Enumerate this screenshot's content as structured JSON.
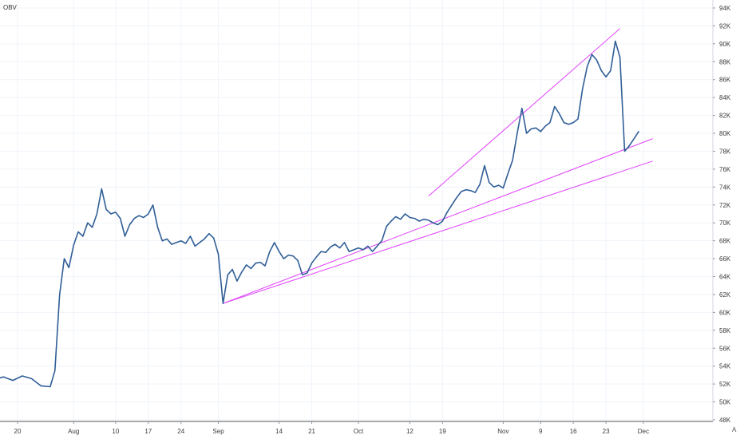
{
  "indicator": {
    "label": "OBV"
  },
  "corner": {
    "label": "A"
  },
  "colors": {
    "series": "#2f5e96",
    "trendline": "#e040fb",
    "grid": "#f0f3fa",
    "axis_text": "#3b3b3b",
    "axis_line": "#9598a1"
  },
  "chart_data": {
    "type": "line",
    "title": "",
    "xlabel": "",
    "ylabel": "",
    "ylim": [
      48000,
      94000
    ],
    "y_ticks": [
      {
        "value": 94000,
        "label": "94K"
      },
      {
        "value": 92000,
        "label": "92K"
      },
      {
        "value": 90000,
        "label": "90K"
      },
      {
        "value": 88000,
        "label": "88K"
      },
      {
        "value": 86000,
        "label": "86K"
      },
      {
        "value": 84000,
        "label": "84K"
      },
      {
        "value": 82000,
        "label": "82K"
      },
      {
        "value": 80000,
        "label": "80K"
      },
      {
        "value": 78000,
        "label": "78K"
      },
      {
        "value": 76000,
        "label": "76K"
      },
      {
        "value": 74000,
        "label": "74K"
      },
      {
        "value": 72000,
        "label": "72K"
      },
      {
        "value": 70000,
        "label": "70K"
      },
      {
        "value": 68000,
        "label": "68K"
      },
      {
        "value": 66000,
        "label": "66K"
      },
      {
        "value": 64000,
        "label": "64K"
      },
      {
        "value": 62000,
        "label": "62K"
      },
      {
        "value": 60000,
        "label": "60K"
      },
      {
        "value": 58000,
        "label": "58K"
      },
      {
        "value": 56000,
        "label": "56K"
      },
      {
        "value": 54000,
        "label": "54K"
      },
      {
        "value": 52000,
        "label": "52K"
      },
      {
        "value": 50000,
        "label": "50K"
      },
      {
        "value": 48000,
        "label": "48K"
      }
    ],
    "x_ticks": [
      {
        "date": "07-20",
        "label": "20"
      },
      {
        "date": "08-01",
        "label": "Aug"
      },
      {
        "date": "08-10",
        "label": "10"
      },
      {
        "date": "08-17",
        "label": "17"
      },
      {
        "date": "08-24",
        "label": "24"
      },
      {
        "date": "09-01",
        "label": "Sep"
      },
      {
        "date": "09-14",
        "label": "14"
      },
      {
        "date": "09-21",
        "label": "21"
      },
      {
        "date": "10-01",
        "label": "Oct"
      },
      {
        "date": "10-12",
        "label": "12"
      },
      {
        "date": "10-19",
        "label": "19"
      },
      {
        "date": "11-01",
        "label": "Nov"
      },
      {
        "date": "11-09",
        "label": "9"
      },
      {
        "date": "11-16",
        "label": "16"
      },
      {
        "date": "11-23",
        "label": "23"
      },
      {
        "date": "12-01",
        "label": "Dec"
      }
    ],
    "series": [
      {
        "points": [
          [
            "07-15",
            52500
          ],
          [
            "07-17",
            52800
          ],
          [
            "07-19",
            52400
          ],
          [
            "07-21",
            52900
          ],
          [
            "07-23",
            52600
          ],
          [
            "07-25",
            51800
          ],
          [
            "07-27",
            51700
          ],
          [
            "07-28",
            53500
          ],
          [
            "07-29",
            62000
          ],
          [
            "07-30",
            66000
          ],
          [
            "07-31",
            65000
          ],
          [
            "08-01",
            67500
          ],
          [
            "08-02",
            69000
          ],
          [
            "08-03",
            68500
          ],
          [
            "08-04",
            70000
          ],
          [
            "08-05",
            69500
          ],
          [
            "08-06",
            71000
          ],
          [
            "08-07",
            73800
          ],
          [
            "08-08",
            71500
          ],
          [
            "08-09",
            71000
          ],
          [
            "08-10",
            71200
          ],
          [
            "08-11",
            70500
          ],
          [
            "08-12",
            68500
          ],
          [
            "08-13",
            69800
          ],
          [
            "08-14",
            70500
          ],
          [
            "08-15",
            70800
          ],
          [
            "08-16",
            70600
          ],
          [
            "08-17",
            71000
          ],
          [
            "08-18",
            72000
          ],
          [
            "08-19",
            69500
          ],
          [
            "08-20",
            68000
          ],
          [
            "08-21",
            68200
          ],
          [
            "08-22",
            67600
          ],
          [
            "08-23",
            67800
          ],
          [
            "08-24",
            68000
          ],
          [
            "08-25",
            67700
          ],
          [
            "08-26",
            68500
          ],
          [
            "08-27",
            67400
          ],
          [
            "08-28",
            67800
          ],
          [
            "08-29",
            68200
          ],
          [
            "08-30",
            68800
          ],
          [
            "08-31",
            68300
          ],
          [
            "09-01",
            66500
          ],
          [
            "09-02",
            61000
          ],
          [
            "09-03",
            64200
          ],
          [
            "09-04",
            64800
          ],
          [
            "09-05",
            63500
          ],
          [
            "09-06",
            64500
          ],
          [
            "09-07",
            65300
          ],
          [
            "09-08",
            64900
          ],
          [
            "09-09",
            65500
          ],
          [
            "09-10",
            65600
          ],
          [
            "09-11",
            65200
          ],
          [
            "09-12",
            66800
          ],
          [
            "09-13",
            67800
          ],
          [
            "09-14",
            66800
          ],
          [
            "09-15",
            66000
          ],
          [
            "09-16",
            66400
          ],
          [
            "09-17",
            66300
          ],
          [
            "09-18",
            65800
          ],
          [
            "09-19",
            64200
          ],
          [
            "09-20",
            64400
          ],
          [
            "09-21",
            65500
          ],
          [
            "09-22",
            66200
          ],
          [
            "09-23",
            66800
          ],
          [
            "09-24",
            66700
          ],
          [
            "09-25",
            67300
          ],
          [
            "09-26",
            67600
          ],
          [
            "09-27",
            67200
          ],
          [
            "09-28",
            67800
          ],
          [
            "09-29",
            66800
          ],
          [
            "09-30",
            67000
          ],
          [
            "10-01",
            67200
          ],
          [
            "10-02",
            67000
          ],
          [
            "10-03",
            67400
          ],
          [
            "10-04",
            66800
          ],
          [
            "10-05",
            67400
          ],
          [
            "10-06",
            68000
          ],
          [
            "10-07",
            69600
          ],
          [
            "10-08",
            70200
          ],
          [
            "10-09",
            70700
          ],
          [
            "10-10",
            70400
          ],
          [
            "10-11",
            71000
          ],
          [
            "10-12",
            70600
          ],
          [
            "10-13",
            70500
          ],
          [
            "10-14",
            70200
          ],
          [
            "10-15",
            70400
          ],
          [
            "10-16",
            70300
          ],
          [
            "10-17",
            70000
          ],
          [
            "10-18",
            69800
          ],
          [
            "10-19",
            70200
          ],
          [
            "10-20",
            71200
          ],
          [
            "10-21",
            72000
          ],
          [
            "10-22",
            72800
          ],
          [
            "10-23",
            73500
          ],
          [
            "10-24",
            73700
          ],
          [
            "10-25",
            73600
          ],
          [
            "10-26",
            73400
          ],
          [
            "10-27",
            74300
          ],
          [
            "10-28",
            76400
          ],
          [
            "10-29",
            74500
          ],
          [
            "10-30",
            74000
          ],
          [
            "10-31",
            74200
          ],
          [
            "11-01",
            73900
          ],
          [
            "11-02",
            75500
          ],
          [
            "11-03",
            77000
          ],
          [
            "11-04",
            80000
          ],
          [
            "11-05",
            82800
          ],
          [
            "11-06",
            80000
          ],
          [
            "11-07",
            80500
          ],
          [
            "11-08",
            80600
          ],
          [
            "11-09",
            80200
          ],
          [
            "11-10",
            80800
          ],
          [
            "11-11",
            81200
          ],
          [
            "11-12",
            83000
          ],
          [
            "11-13",
            82200
          ],
          [
            "11-14",
            81200
          ],
          [
            "11-15",
            81000
          ],
          [
            "11-16",
            81200
          ],
          [
            "11-17",
            81600
          ],
          [
            "11-18",
            85000
          ],
          [
            "11-19",
            87500
          ],
          [
            "11-20",
            88800
          ],
          [
            "11-21",
            88200
          ],
          [
            "11-22",
            87000
          ],
          [
            "11-23",
            86300
          ],
          [
            "11-24",
            87000
          ],
          [
            "11-25",
            90300
          ],
          [
            "11-26",
            88500
          ],
          [
            "11-27",
            78000
          ],
          [
            "11-28",
            78600
          ],
          [
            "11-29",
            79400
          ],
          [
            "11-30",
            80200
          ]
        ]
      }
    ],
    "trendlines": [
      {
        "from": [
          "09-02",
          61000
        ],
        "to": [
          "12-03",
          79400
        ]
      },
      {
        "from": [
          "09-02",
          61000
        ],
        "to": [
          "12-03",
          76900
        ]
      },
      {
        "from": [
          "10-16",
          73000
        ],
        "to": [
          "11-26",
          91700
        ]
      }
    ]
  }
}
